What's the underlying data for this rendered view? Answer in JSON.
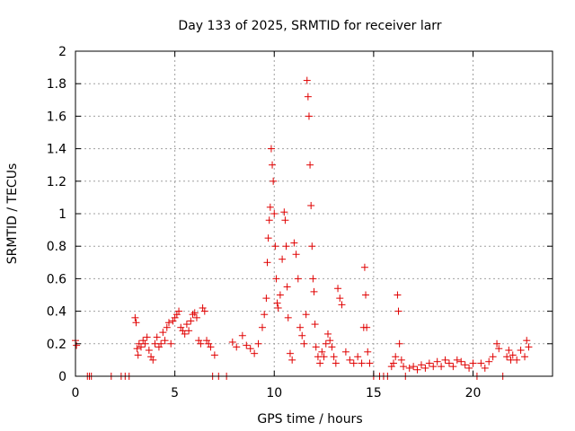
{
  "chart_data": {
    "type": "scatter",
    "title": "Day 133 of 2025, SRMTID for receiver larr",
    "xlabel": "GPS time / hours",
    "ylabel": "SRMTID / TECUs",
    "xlim": [
      0,
      24
    ],
    "ylim": [
      0,
      2
    ],
    "xticks": [
      0,
      5,
      10,
      15,
      20
    ],
    "xtick_labels": [
      "0",
      "5",
      "10",
      "15",
      "20"
    ],
    "yticks": [
      0,
      0.2,
      0.4,
      0.6,
      0.8,
      1,
      1.2,
      1.4,
      1.6,
      1.8,
      2
    ],
    "ytick_labels": [
      "0",
      "0.2",
      "0.4",
      "0.6",
      "0.8",
      "1",
      "1.2",
      "1.4",
      "1.6",
      "1.8",
      "2"
    ],
    "grid": true,
    "marker": "+",
    "color": "#e00000",
    "series": [
      {
        "name": "SRMTID",
        "points": [
          [
            0.0,
            0.22
          ],
          [
            0.05,
            0.19
          ],
          [
            0.6,
            0.0
          ],
          [
            0.7,
            0.0
          ],
          [
            0.8,
            0.0
          ],
          [
            1.8,
            0.0
          ],
          [
            2.3,
            0.0
          ],
          [
            2.5,
            0.0
          ],
          [
            2.7,
            0.0
          ],
          [
            3.0,
            0.36
          ],
          [
            3.05,
            0.33
          ],
          [
            3.1,
            0.17
          ],
          [
            3.15,
            0.13
          ],
          [
            3.2,
            0.2
          ],
          [
            3.3,
            0.18
          ],
          [
            3.4,
            0.22
          ],
          [
            3.5,
            0.2
          ],
          [
            3.6,
            0.24
          ],
          [
            3.7,
            0.16
          ],
          [
            3.8,
            0.12
          ],
          [
            3.9,
            0.1
          ],
          [
            4.0,
            0.2
          ],
          [
            4.1,
            0.24
          ],
          [
            4.2,
            0.18
          ],
          [
            4.3,
            0.2
          ],
          [
            4.4,
            0.27
          ],
          [
            4.5,
            0.22
          ],
          [
            4.6,
            0.3
          ],
          [
            4.7,
            0.33
          ],
          [
            4.8,
            0.2
          ],
          [
            4.9,
            0.34
          ],
          [
            5.0,
            0.36
          ],
          [
            5.1,
            0.38
          ],
          [
            5.2,
            0.4
          ],
          [
            5.3,
            0.3
          ],
          [
            5.4,
            0.28
          ],
          [
            5.5,
            0.26
          ],
          [
            5.6,
            0.32
          ],
          [
            5.7,
            0.28
          ],
          [
            5.8,
            0.34
          ],
          [
            5.9,
            0.38
          ],
          [
            6.0,
            0.39
          ],
          [
            6.1,
            0.36
          ],
          [
            6.2,
            0.22
          ],
          [
            6.3,
            0.2
          ],
          [
            6.4,
            0.42
          ],
          [
            6.5,
            0.4
          ],
          [
            6.6,
            0.22
          ],
          [
            6.7,
            0.2
          ],
          [
            6.8,
            0.18
          ],
          [
            6.9,
            0.0
          ],
          [
            7.0,
            0.13
          ],
          [
            7.2,
            0.0
          ],
          [
            7.6,
            0.0
          ],
          [
            7.9,
            0.21
          ],
          [
            8.1,
            0.18
          ],
          [
            8.4,
            0.25
          ],
          [
            8.6,
            0.19
          ],
          [
            8.8,
            0.17
          ],
          [
            9.0,
            0.14
          ],
          [
            9.2,
            0.2
          ],
          [
            9.4,
            0.3
          ],
          [
            9.5,
            0.38
          ],
          [
            9.6,
            0.48
          ],
          [
            9.65,
            0.7
          ],
          [
            9.7,
            0.85
          ],
          [
            9.75,
            0.96
          ],
          [
            9.8,
            1.04
          ],
          [
            9.85,
            1.4
          ],
          [
            9.9,
            1.3
          ],
          [
            9.95,
            1.2
          ],
          [
            10.0,
            1.0
          ],
          [
            10.05,
            0.8
          ],
          [
            10.1,
            0.6
          ],
          [
            10.15,
            0.45
          ],
          [
            10.2,
            0.42
          ],
          [
            10.3,
            0.5
          ],
          [
            10.4,
            0.72
          ],
          [
            10.5,
            1.01
          ],
          [
            10.55,
            0.96
          ],
          [
            10.6,
            0.8
          ],
          [
            10.65,
            0.55
          ],
          [
            10.7,
            0.36
          ],
          [
            10.8,
            0.14
          ],
          [
            10.9,
            0.1
          ],
          [
            11.0,
            0.82
          ],
          [
            11.1,
            0.75
          ],
          [
            11.2,
            0.6
          ],
          [
            11.3,
            0.3
          ],
          [
            11.4,
            0.25
          ],
          [
            11.5,
            0.2
          ],
          [
            11.6,
            0.38
          ],
          [
            11.65,
            1.82
          ],
          [
            11.7,
            1.72
          ],
          [
            11.75,
            1.6
          ],
          [
            11.8,
            1.3
          ],
          [
            11.85,
            1.05
          ],
          [
            11.9,
            0.8
          ],
          [
            11.95,
            0.6
          ],
          [
            12.0,
            0.52
          ],
          [
            12.05,
            0.32
          ],
          [
            12.1,
            0.18
          ],
          [
            12.2,
            0.12
          ],
          [
            12.3,
            0.08
          ],
          [
            12.4,
            0.15
          ],
          [
            12.5,
            0.12
          ],
          [
            12.6,
            0.2
          ],
          [
            12.7,
            0.26
          ],
          [
            12.8,
            0.22
          ],
          [
            12.9,
            0.18
          ],
          [
            13.0,
            0.12
          ],
          [
            13.1,
            0.08
          ],
          [
            13.2,
            0.54
          ],
          [
            13.3,
            0.48
          ],
          [
            13.4,
            0.44
          ],
          [
            13.6,
            0.15
          ],
          [
            13.8,
            0.1
          ],
          [
            14.0,
            0.08
          ],
          [
            14.2,
            0.12
          ],
          [
            14.4,
            0.08
          ],
          [
            14.5,
            0.3
          ],
          [
            14.55,
            0.67
          ],
          [
            14.6,
            0.5
          ],
          [
            14.65,
            0.3
          ],
          [
            14.7,
            0.15
          ],
          [
            14.8,
            0.08
          ],
          [
            15.0,
            0.0
          ],
          [
            15.3,
            0.0
          ],
          [
            15.5,
            0.0
          ],
          [
            15.7,
            0.0
          ],
          [
            15.9,
            0.06
          ],
          [
            16.0,
            0.08
          ],
          [
            16.1,
            0.12
          ],
          [
            16.2,
            0.5
          ],
          [
            16.25,
            0.4
          ],
          [
            16.3,
            0.2
          ],
          [
            16.4,
            0.1
          ],
          [
            16.5,
            0.06
          ],
          [
            16.6,
            0.0
          ],
          [
            16.8,
            0.05
          ],
          [
            17.0,
            0.06
          ],
          [
            17.2,
            0.04
          ],
          [
            17.4,
            0.07
          ],
          [
            17.6,
            0.05
          ],
          [
            17.8,
            0.08
          ],
          [
            18.0,
            0.06
          ],
          [
            18.2,
            0.09
          ],
          [
            18.4,
            0.06
          ],
          [
            18.6,
            0.1
          ],
          [
            18.8,
            0.08
          ],
          [
            19.0,
            0.06
          ],
          [
            19.2,
            0.1
          ],
          [
            19.4,
            0.09
          ],
          [
            19.6,
            0.07
          ],
          [
            19.8,
            0.05
          ],
          [
            20.0,
            0.08
          ],
          [
            20.2,
            0.0
          ],
          [
            20.4,
            0.08
          ],
          [
            20.6,
            0.05
          ],
          [
            20.8,
            0.09
          ],
          [
            21.0,
            0.12
          ],
          [
            21.2,
            0.2
          ],
          [
            21.3,
            0.17
          ],
          [
            21.5,
            0.0
          ],
          [
            21.7,
            0.12
          ],
          [
            21.8,
            0.16
          ],
          [
            21.9,
            0.1
          ],
          [
            22.0,
            0.13
          ],
          [
            22.2,
            0.1
          ],
          [
            22.4,
            0.16
          ],
          [
            22.6,
            0.12
          ],
          [
            22.7,
            0.22
          ],
          [
            22.8,
            0.18
          ]
        ]
      }
    ]
  }
}
